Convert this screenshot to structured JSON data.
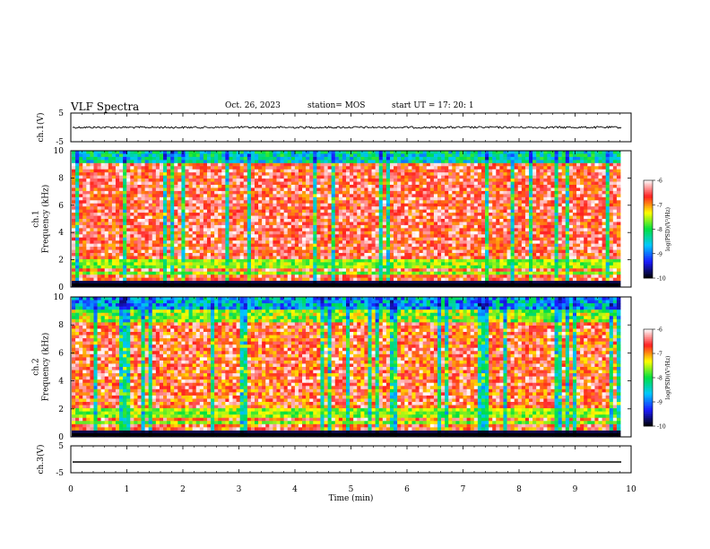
{
  "header": {
    "title": "VLF Spectra",
    "date": "Oct. 26, 2023",
    "station": "station= MOS",
    "start_ut": "start  UT =   17: 20: 1"
  },
  "colorbar": {
    "label": "log(PSD)(V²/Hz)",
    "ticks": [
      "-6",
      "-7",
      "-8",
      "-9",
      "-10"
    ],
    "range": [
      -10,
      -6
    ],
    "colors": [
      "#000000",
      "#1a1aff",
      "#00c8ff",
      "#00e040",
      "#ffff00",
      "#ff2020",
      "#ffffff"
    ]
  },
  "chart_data": [
    {
      "type": "line",
      "name": "ch1-waveform",
      "ylabel": "ch.1(V)",
      "ylim": [
        -5,
        5
      ],
      "yticks": [
        "5",
        "-5"
      ],
      "xlim": [
        0,
        10
      ],
      "level": 0,
      "color": "#000000"
    },
    {
      "type": "heatmap",
      "name": "ch1-spectrogram",
      "ylabel": "ch.1\nFrequency (kHz)",
      "ylim": [
        0,
        10
      ],
      "yticks": [
        "0",
        "2",
        "4",
        "6",
        "8",
        "10"
      ],
      "xlim": [
        0,
        10
      ]
    },
    {
      "type": "heatmap",
      "name": "ch2-spectrogram",
      "ylabel": "ch.2\nFrequency (kHz)",
      "ylim": [
        0,
        10
      ],
      "yticks": [
        "0",
        "2",
        "4",
        "6",
        "8",
        "10"
      ],
      "xlim": [
        0,
        10
      ]
    },
    {
      "type": "line",
      "name": "ch3-waveform",
      "ylabel": "ch.3(V)",
      "ylim": [
        -5,
        5
      ],
      "yticks": [
        "5",
        "-5"
      ],
      "xlim": [
        0,
        10
      ],
      "level": -1,
      "xlabel": "Time (min)",
      "xticks": [
        "0",
        "1",
        "2",
        "3",
        "4",
        "5",
        "6",
        "7",
        "8",
        "9",
        "10"
      ],
      "color": "#000000"
    }
  ]
}
